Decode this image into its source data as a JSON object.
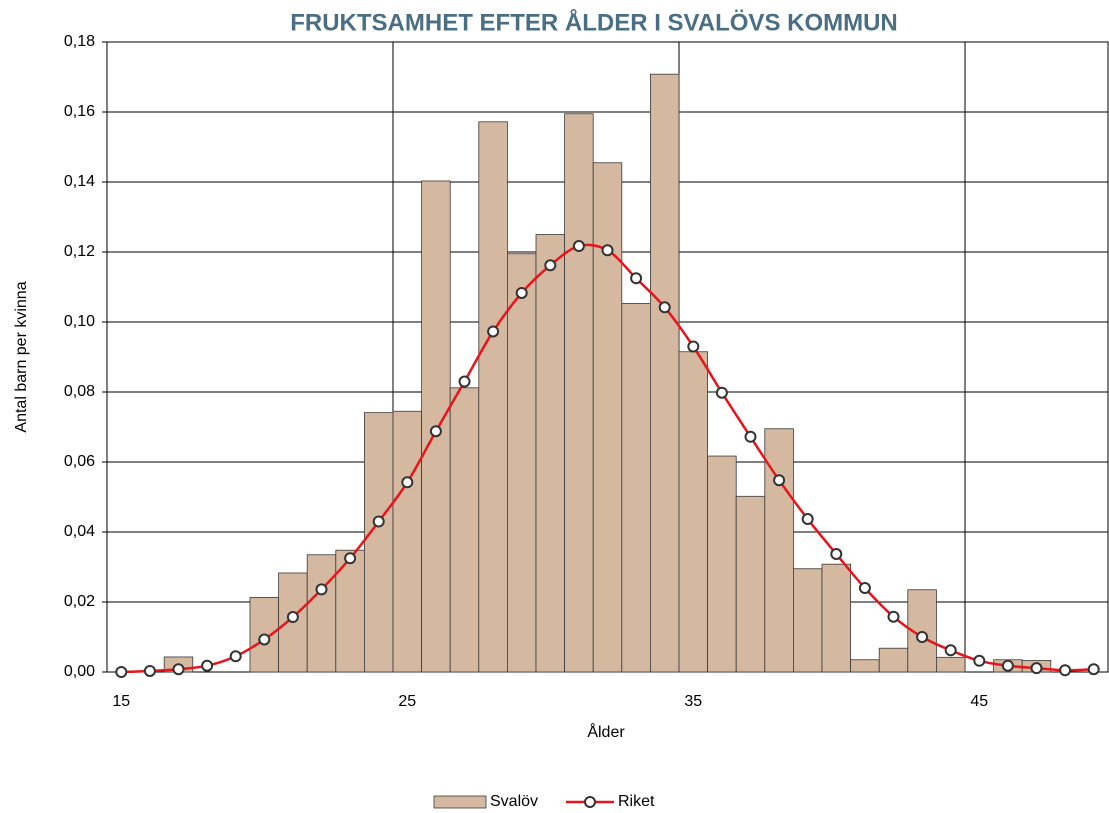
{
  "chart_data": {
    "type": "bar+line",
    "title": "FRUKTSAMHET EFTER ÅLDER I SVALÖVS KOMMUN",
    "x_label": "Ålder",
    "y_label": "Antal barn per kvinna",
    "categories": [
      15,
      null,
      null,
      null,
      null,
      null,
      null,
      null,
      null,
      null,
      25,
      null,
      null,
      null,
      null,
      null,
      null,
      null,
      null,
      null,
      35,
      null,
      null,
      null,
      null,
      null,
      null,
      null,
      null,
      null,
      45,
      null,
      null,
      null,
      null
    ],
    "series": [
      {
        "name": "Svalöv",
        "type": "bar",
        "color": "#d4b8a0",
        "values": [
          0,
          0,
          0.0043,
          0,
          0,
          0.0213,
          0.0283,
          0.0335,
          0.0348,
          0.0741,
          0.0745,
          0.1403,
          0.0812,
          0.1572,
          0.1195,
          0.125,
          0.1595,
          0.1455,
          0.1053,
          0.1708,
          0.0915,
          0.0617,
          0.0502,
          0.0695,
          0.0295,
          0.0308,
          0.0035,
          0.0068,
          0.0235,
          0.0042,
          0,
          0.0035,
          0.0033,
          0,
          0
        ]
      },
      {
        "name": "Riket",
        "type": "line",
        "color": "#e8141b",
        "values": [
          0,
          0.0003,
          0.0008,
          0.0018,
          0.0045,
          0.0093,
          0.0157,
          0.0236,
          0.0325,
          0.043,
          0.0542,
          0.0688,
          0.083,
          0.0973,
          0.1083,
          0.1162,
          0.1217,
          0.1205,
          0.1125,
          0.1042,
          0.093,
          0.0798,
          0.0672,
          0.0548,
          0.0437,
          0.0337,
          0.024,
          0.0158,
          0.01,
          0.0062,
          0.0032,
          0.0018,
          0.0011,
          0.0005,
          0.0008
        ]
      }
    ],
    "ylim": [
      0,
      0.18
    ],
    "yticks": [
      {
        "value": 0,
        "label": "0,00"
      },
      {
        "value": 0.02,
        "label": "0,02"
      },
      {
        "value": 0.04,
        "label": "0,04"
      },
      {
        "value": 0.06,
        "label": "0,06"
      },
      {
        "value": 0.08,
        "label": "0,08"
      },
      {
        "value": 0.1,
        "label": "0,10"
      },
      {
        "value": 0.12,
        "label": "0,12"
      },
      {
        "value": 0.14,
        "label": "0,14"
      },
      {
        "value": 0.16,
        "label": "0,16"
      },
      {
        "value": 0.18,
        "label": "0,18"
      }
    ],
    "grid": true,
    "legend": "bottom"
  }
}
